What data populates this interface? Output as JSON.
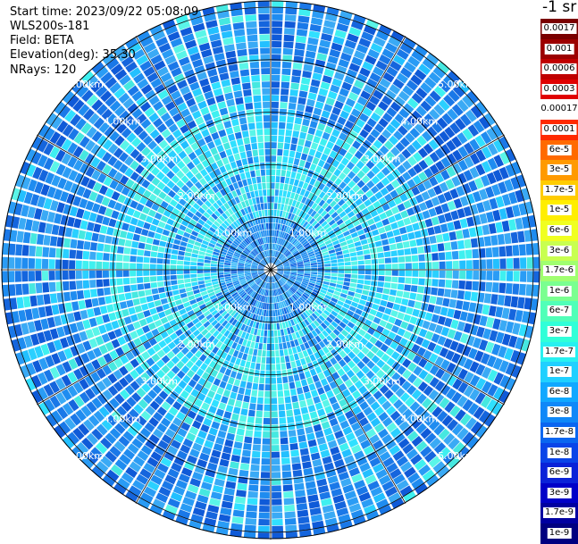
{
  "info": {
    "start_time": "Start time: 2023/09/22 05:08:09",
    "instrument": "WLS200s-181",
    "field": "Field: BETA",
    "elevation": "Elevation(deg): 35.30",
    "nrays": "NRays: 120"
  },
  "colorbar": {
    "unit": "-1 sr",
    "labels": [
      "0.0017",
      "0.001",
      "0.0006",
      "0.0003",
      "0.00017",
      "0.0001",
      "6e-5",
      "3e-5",
      "1.7e-5",
      "1e-5",
      "6e-6",
      "3e-6",
      "1.7e-6",
      "1e-6",
      "6e-7",
      "3e-7",
      "1.7e-7",
      "1e-7",
      "6e-8",
      "3e-8",
      "1.7e-8",
      "1e-8",
      "6e-9",
      "3e-9",
      "1.7e-9",
      "1e-9"
    ],
    "colors": [
      "#7a0000",
      "#9c0000",
      "#c00000",
      "#e00000",
      "#ffffff",
      "#ff2a00",
      "#ff6a00",
      "#ff9a00",
      "#ffcc00",
      "#ffee00",
      "#f0ff20",
      "#c8ff50",
      "#a0ff70",
      "#7aff90",
      "#50ffb8",
      "#30ffd8",
      "#28f0f0",
      "#20d0ff",
      "#10a8ff",
      "#0f88f8",
      "#0a66f0",
      "#0a44e8",
      "#0a22d8",
      "#0000c8",
      "#0000a0",
      "#000080"
    ]
  },
  "range_labels": [
    "1.00km",
    "2.00km",
    "3.00km",
    "4.00km",
    "5.00km"
  ],
  "chart_data": {
    "type": "heatmap",
    "title": "",
    "field": "BETA",
    "elevation_deg": 35.3,
    "n_rays": 120,
    "range_rings_km": [
      1,
      2,
      3,
      4,
      5
    ],
    "scale": "log",
    "value_range": [
      1e-09,
      0.0017
    ],
    "background_level": "1e-8 to 1e-7 (blue to cyan), cyan within ~3 km, darker blue beyond"
  }
}
